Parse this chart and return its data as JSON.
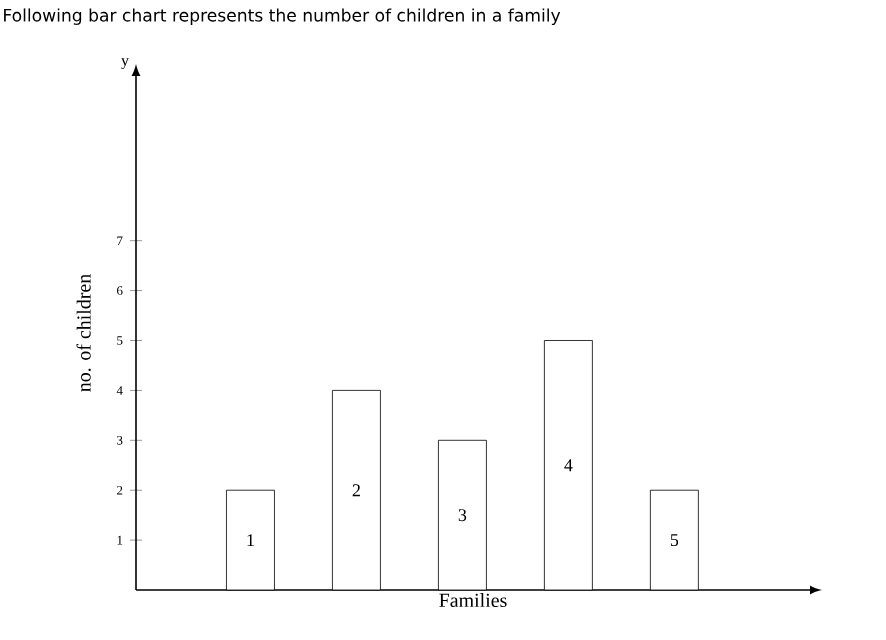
{
  "chart_data": {
    "type": "bar",
    "title": "Following bar chart represents the number of children in a family",
    "xlabel": "Families",
    "ylabel": "no. of children",
    "categories": [
      "1",
      "2",
      "3",
      "4",
      "5"
    ],
    "values": [
      2,
      4,
      3,
      5,
      2
    ],
    "color": "#ffffff",
    "ylim": [
      0,
      10.3
    ],
    "yticks": [
      1,
      2,
      3,
      4,
      5,
      6,
      7
    ],
    "annotations": [
      "y"
    ]
  }
}
